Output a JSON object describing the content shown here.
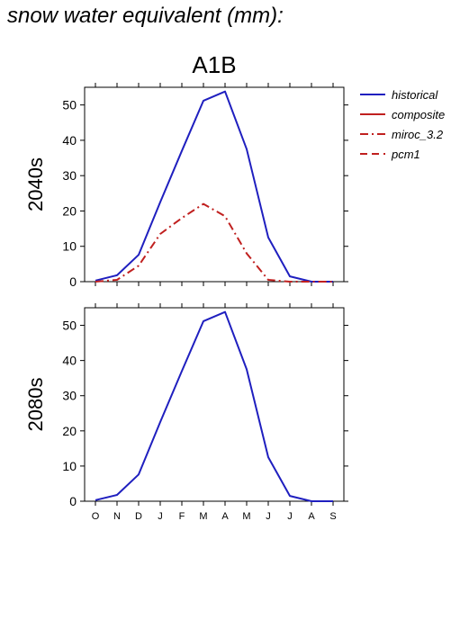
{
  "page_title": "snow water equivalent (mm):",
  "chart_data": [
    {
      "type": "line",
      "title": "A1B",
      "ylabel": "2040s",
      "categories": [
        "O",
        "N",
        "D",
        "J",
        "F",
        "M",
        "A",
        "M",
        "J",
        "J",
        "A",
        "S"
      ],
      "ylim": [
        0,
        55
      ],
      "yticks": [
        0,
        10,
        20,
        30,
        40,
        50
      ],
      "series": [
        {
          "name": "historical",
          "color": "#1f1fbf",
          "dash": "solid",
          "values": [
            0.3,
            1.8,
            7.6,
            22.5,
            37.0,
            51.2,
            53.8,
            37.5,
            12.5,
            1.5,
            0,
            0
          ]
        },
        {
          "name": "miroc_3.2",
          "color": "#c0201f",
          "dash": "dashdot",
          "values": [
            0,
            0.5,
            4.5,
            13.5,
            18.0,
            22.0,
            18.5,
            8.0,
            0.5,
            0,
            0,
            0
          ]
        }
      ],
      "legend": {
        "position": "right",
        "entries": [
          {
            "name": "historical",
            "color": "#1f1fbf",
            "dash": "solid"
          },
          {
            "name": "composite",
            "color": "#c0201f",
            "dash": "solid"
          },
          {
            "name": "miroc_3.2",
            "color": "#c0201f",
            "dash": "dashdot"
          },
          {
            "name": "pcm1",
            "color": "#c0201f",
            "dash": "dashed"
          }
        ]
      }
    },
    {
      "type": "line",
      "title": "",
      "ylabel": "2080s",
      "categories": [
        "O",
        "N",
        "D",
        "J",
        "F",
        "M",
        "A",
        "M",
        "J",
        "J",
        "A",
        "S"
      ],
      "ylim": [
        0,
        55
      ],
      "yticks": [
        0,
        10,
        20,
        30,
        40,
        50
      ],
      "series": [
        {
          "name": "historical",
          "color": "#1f1fbf",
          "dash": "solid",
          "values": [
            0.3,
            1.8,
            7.6,
            22.5,
            37.0,
            51.2,
            53.8,
            37.5,
            12.5,
            1.5,
            0,
            0
          ]
        }
      ]
    }
  ]
}
